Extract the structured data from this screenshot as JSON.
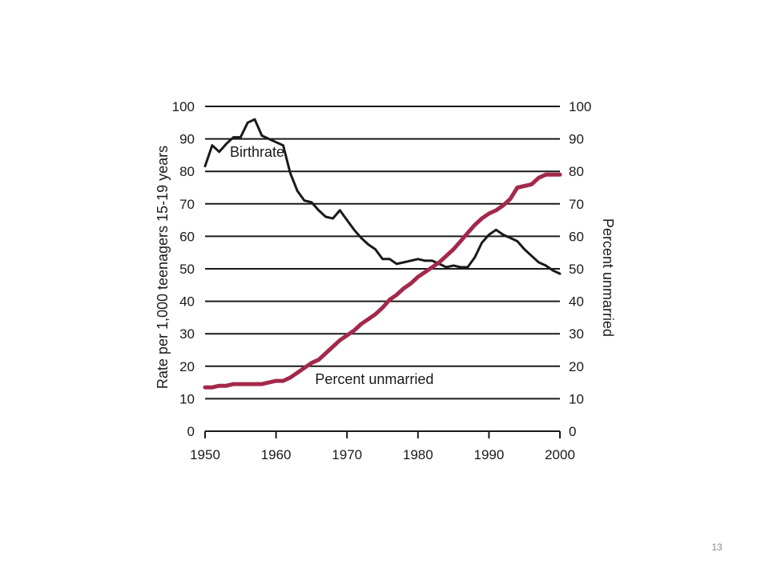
{
  "slide": {
    "number": "13"
  },
  "chart_data": {
    "type": "line",
    "xlabel": "",
    "ylabel": "Rate per 1,000 teenagers 15-19 years",
    "y2label": "Percent unmarried",
    "xlim": [
      1950,
      2000
    ],
    "ylim": [
      0,
      100
    ],
    "y2lim": [
      0,
      100
    ],
    "x_ticks": [
      "1950",
      "1960",
      "1970",
      "1980",
      "1990",
      "2000"
    ],
    "y_ticks": [
      "0",
      "10",
      "20",
      "30",
      "40",
      "50",
      "60",
      "70",
      "80",
      "90",
      "100"
    ],
    "y2_ticks": [
      "0",
      "10",
      "20",
      "30",
      "40",
      "50",
      "60",
      "70",
      "80",
      "90",
      "100"
    ],
    "grid": "horizontal",
    "series": [
      {
        "name": "Birthrate",
        "axis": "left",
        "color": "#1a1a1a",
        "x": [
          1950,
          1951,
          1952,
          1953,
          1954,
          1955,
          1956,
          1957,
          1958,
          1959,
          1960,
          1961,
          1962,
          1963,
          1964,
          1965,
          1966,
          1967,
          1968,
          1969,
          1970,
          1971,
          1972,
          1973,
          1974,
          1975,
          1976,
          1977,
          1978,
          1979,
          1980,
          1981,
          1982,
          1983,
          1984,
          1985,
          1986,
          1987,
          1988,
          1989,
          1990,
          1991,
          1992,
          1993,
          1994,
          1995,
          1996,
          1997,
          1998,
          1999,
          2000
        ],
        "values": [
          81.6,
          88,
          86,
          88.5,
          90.5,
          90.5,
          95,
          96,
          91,
          90,
          89,
          88,
          79.5,
          74,
          71,
          70.5,
          68,
          66,
          65.5,
          68,
          65,
          62,
          59.5,
          57.5,
          56,
          53,
          53,
          51.5,
          52,
          52.5,
          53,
          52.5,
          52.5,
          51.5,
          50.5,
          51,
          50.5,
          50.5,
          53.5,
          58,
          60.5,
          62,
          60.5,
          59.5,
          58.5,
          56,
          54,
          52,
          51,
          49.5,
          48.5
        ]
      },
      {
        "name": "Percent unmarried",
        "axis": "right",
        "color": "#a3294a",
        "x": [
          1950,
          1951,
          1952,
          1953,
          1954,
          1955,
          1956,
          1957,
          1958,
          1959,
          1960,
          1961,
          1962,
          1963,
          1964,
          1965,
          1966,
          1967,
          1968,
          1969,
          1970,
          1971,
          1972,
          1973,
          1974,
          1975,
          1976,
          1977,
          1978,
          1979,
          1980,
          1981,
          1982,
          1983,
          1984,
          1985,
          1986,
          1987,
          1988,
          1989,
          1990,
          1991,
          1992,
          1993,
          1994,
          1995,
          1996,
          1997,
          1998,
          1999,
          2000
        ],
        "values": [
          13.5,
          13.5,
          14,
          14,
          14.5,
          14.5,
          14.5,
          14.5,
          14.5,
          15,
          15.5,
          15.5,
          16.5,
          18,
          19.5,
          21,
          22,
          24,
          26,
          28,
          29.5,
          31,
          33,
          34.5,
          36,
          38,
          40.5,
          42,
          44,
          45.5,
          47.5,
          49,
          50.5,
          52,
          54,
          56,
          58.5,
          61,
          63.5,
          65.5,
          67,
          68,
          69.5,
          71.5,
          75,
          75.5,
          76,
          78,
          79,
          79,
          79
        ]
      }
    ],
    "annotations": [
      {
        "text": "Birthrate",
        "x": 1953.5,
        "y": 84.5
      },
      {
        "text": "Percent unmarried",
        "x": 1965.5,
        "y": 14.5
      }
    ]
  }
}
